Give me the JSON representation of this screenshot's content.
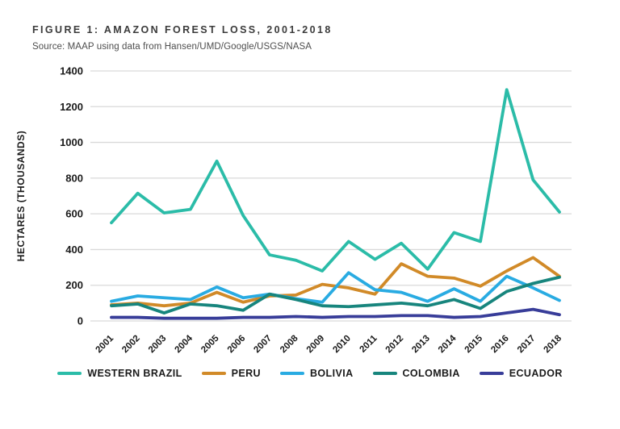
{
  "header": {
    "title": "FIGURE 1: AMAZON FOREST LOSS, 2001-2018",
    "source": "Source: MAAP using data from Hansen/UMD/Google/USGS/NASA"
  },
  "colors": {
    "grid": "#d9d9d9",
    "tick_text": "#1a1a1a",
    "title_text": "#3b3b3b"
  },
  "chart_data": {
    "type": "line",
    "title": "FIGURE 1: AMAZON FOREST LOSS, 2001-2018",
    "xlabel": "",
    "ylabel": "HECTARES (THOUSANDS)",
    "ylim": [
      0,
      1400
    ],
    "ytick_step": 200,
    "yticks": [
      0,
      200,
      400,
      600,
      800,
      1000,
      1200,
      1400
    ],
    "grid": true,
    "legend_position": "bottom",
    "x": [
      "2001",
      "2002",
      "2003",
      "2004",
      "2005",
      "2006",
      "2007",
      "2008",
      "2009",
      "2010",
      "2011",
      "2012",
      "2013",
      "2014",
      "2015",
      "2016",
      "2017",
      "2018"
    ],
    "series": [
      {
        "name": "WESTERN BRAZIL",
        "color": "#2bbca8",
        "values": [
          550,
          715,
          605,
          625,
          895,
          590,
          370,
          340,
          280,
          445,
          345,
          435,
          290,
          495,
          445,
          1295,
          790,
          610
        ]
      },
      {
        "name": "PERU",
        "color": "#d18a28",
        "values": [
          90,
          100,
          85,
          100,
          160,
          105,
          140,
          145,
          205,
          185,
          150,
          320,
          250,
          240,
          195,
          280,
          355,
          250
        ]
      },
      {
        "name": "BOLIVIA",
        "color": "#29abe2",
        "values": [
          110,
          140,
          130,
          120,
          190,
          130,
          150,
          125,
          105,
          270,
          175,
          160,
          110,
          180,
          110,
          250,
          185,
          115
        ]
      },
      {
        "name": "COLOMBIA",
        "color": "#17857d",
        "values": [
          85,
          95,
          45,
          95,
          85,
          60,
          150,
          120,
          85,
          80,
          90,
          100,
          85,
          120,
          70,
          165,
          210,
          245
        ]
      },
      {
        "name": "ECUADOR",
        "color": "#383d99",
        "values": [
          20,
          20,
          15,
          15,
          15,
          20,
          20,
          25,
          20,
          25,
          25,
          30,
          30,
          20,
          25,
          45,
          65,
          35
        ]
      }
    ]
  }
}
